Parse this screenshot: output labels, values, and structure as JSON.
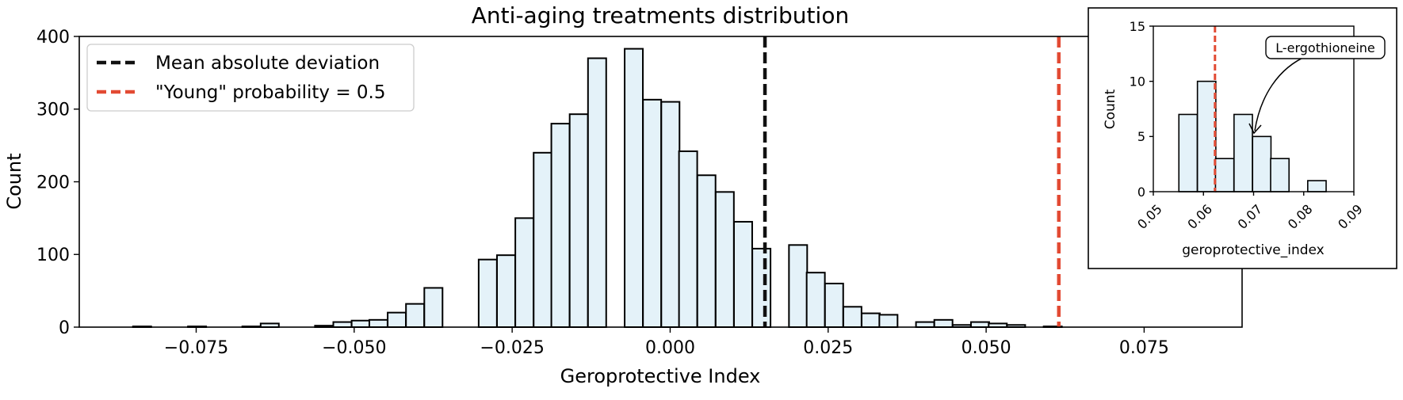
{
  "chart_data": [
    {
      "type": "bar",
      "title": "Anti-aging treatments distribution",
      "xlabel": "Geroprotective Index",
      "ylabel": "Count",
      "xlim": [
        -0.0935,
        0.0905
      ],
      "ylim": [
        0,
        400
      ],
      "xticks": [
        -0.075,
        -0.05,
        -0.025,
        0.0,
        0.025,
        0.05,
        0.075
      ],
      "xtick_labels": [
        "−0.075",
        "−0.050",
        "−0.025",
        "0.000",
        "0.025",
        "0.050",
        "0.075"
      ],
      "yticks": [
        0,
        100,
        200,
        300,
        400
      ],
      "ytick_labels": [
        "0",
        "100",
        "200",
        "300",
        "400"
      ],
      "bin_width": 0.00288,
      "bins": [
        {
          "x": -0.085,
          "count": 1
        },
        {
          "x": -0.0763,
          "count": 1
        },
        {
          "x": -0.0677,
          "count": 1
        },
        {
          "x": -0.0648,
          "count": 5
        },
        {
          "x": -0.0562,
          "count": 2
        },
        {
          "x": -0.0533,
          "count": 7
        },
        {
          "x": -0.0504,
          "count": 9
        },
        {
          "x": -0.0476,
          "count": 10
        },
        {
          "x": -0.0447,
          "count": 20
        },
        {
          "x": -0.0418,
          "count": 32
        },
        {
          "x": -0.0389,
          "count": 54
        },
        {
          "x": -0.0303,
          "count": 93
        },
        {
          "x": -0.0274,
          "count": 99
        },
        {
          "x": -0.0245,
          "count": 150
        },
        {
          "x": -0.0216,
          "count": 240
        },
        {
          "x": -0.0188,
          "count": 280
        },
        {
          "x": -0.0159,
          "count": 293
        },
        {
          "x": -0.013,
          "count": 370
        },
        {
          "x": -0.0072,
          "count": 383
        },
        {
          "x": -0.0043,
          "count": 313
        },
        {
          "x": -0.0014,
          "count": 310
        },
        {
          "x": 0.0014,
          "count": 242
        },
        {
          "x": 0.0043,
          "count": 209
        },
        {
          "x": 0.0072,
          "count": 186
        },
        {
          "x": 0.0101,
          "count": 145
        },
        {
          "x": 0.013,
          "count": 108
        },
        {
          "x": 0.0188,
          "count": 113
        },
        {
          "x": 0.0216,
          "count": 75
        },
        {
          "x": 0.0245,
          "count": 60
        },
        {
          "x": 0.0274,
          "count": 28
        },
        {
          "x": 0.0303,
          "count": 19
        },
        {
          "x": 0.0331,
          "count": 17
        },
        {
          "x": 0.0389,
          "count": 7
        },
        {
          "x": 0.0418,
          "count": 10
        },
        {
          "x": 0.0447,
          "count": 3
        },
        {
          "x": 0.0476,
          "count": 7
        },
        {
          "x": 0.0504,
          "count": 5
        },
        {
          "x": 0.0533,
          "count": 3
        },
        {
          "x": 0.0591,
          "count": 1
        }
      ],
      "vlines": [
        {
          "x": 0.015,
          "color": "#111111",
          "label": "Mean absolute deviation"
        },
        {
          "x": 0.0615,
          "color": "#e24a33",
          "label": "\"Young\" probability = 0.5"
        }
      ],
      "legend_position": "upper-left",
      "bar_fill": "#e4f2f9",
      "bar_edge": "#000000"
    },
    {
      "type": "bar",
      "inset": true,
      "position": "top-right",
      "xlabel": "geroprotective_index",
      "ylabel": "Count",
      "xlim": [
        0.05,
        0.09
      ],
      "ylim": [
        0,
        15
      ],
      "xticks": [
        0.05,
        0.06,
        0.07,
        0.08,
        0.09
      ],
      "xtick_labels": [
        "0.05",
        "0.06",
        "0.07",
        "0.08",
        "0.09"
      ],
      "yticks": [
        0,
        5,
        10,
        15
      ],
      "ytick_labels": [
        "0",
        "5",
        "10",
        "15"
      ],
      "bin_width": 0.00367,
      "bins": [
        {
          "x": 0.0551,
          "count": 7
        },
        {
          "x": 0.0588,
          "count": 10
        },
        {
          "x": 0.0624,
          "count": 3
        },
        {
          "x": 0.0661,
          "count": 7
        },
        {
          "x": 0.0698,
          "count": 5
        },
        {
          "x": 0.0734,
          "count": 3
        },
        {
          "x": 0.0808,
          "count": 1
        }
      ],
      "vlines": [
        {
          "x": 0.0623,
          "color": "#e24a33"
        }
      ],
      "annotation": {
        "text": "L-ergothioneine",
        "x": 0.0698,
        "y": 5
      }
    }
  ]
}
